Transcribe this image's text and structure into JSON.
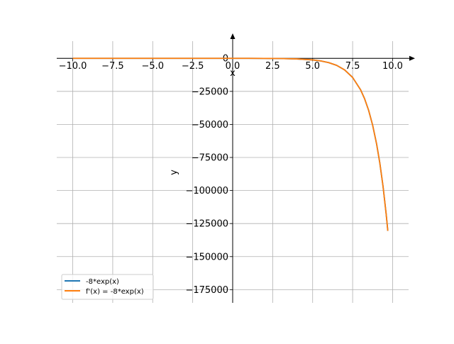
{
  "chart_data": {
    "type": "line",
    "xlabel": "x",
    "ylabel": "y",
    "xlim": [
      -11.0,
      11.0
    ],
    "ylim": [
      -185000,
      13000
    ],
    "grid": true,
    "legend_placement": "lower-left",
    "x_ticks": [
      -10.0,
      -7.5,
      -5.0,
      -2.5,
      0.0,
      2.5,
      5.0,
      7.5,
      10.0
    ],
    "x_tick_labels": [
      "−10.0",
      "−7.5",
      "−5.0",
      "−2.5",
      "0.0",
      "2.5",
      "5.0",
      "7.5",
      "10.0"
    ],
    "y_ticks": [
      0,
      -25000,
      -50000,
      -75000,
      -100000,
      -125000,
      -150000,
      -175000
    ],
    "y_tick_labels": [
      "0",
      "−25000",
      "−50000",
      "−75000",
      "−100000",
      "−125000",
      "−150000",
      "−175000"
    ],
    "x": [
      -10.0,
      -8.0,
      -6.0,
      -4.0,
      -2.0,
      0.0,
      1.0,
      2.0,
      3.0,
      4.0,
      5.0,
      5.5,
      6.0,
      6.5,
      7.0,
      7.5,
      8.0,
      8.25,
      8.5,
      8.75,
      9.0,
      9.2,
      9.4,
      9.6,
      9.7
    ],
    "series": [
      {
        "name": "-8*exp(x)",
        "color": "#1f77b4",
        "values": [
          -0.0004,
          -0.003,
          -0.02,
          -0.15,
          -1.08,
          -8,
          -21.7,
          -59.1,
          -160.7,
          -436.8,
          -1187.3,
          -1957.5,
          -3227.3,
          -5321.0,
          -8772.9,
          -14463.9,
          -23847.0,
          -30620.2,
          -39316.7,
          -50483.3,
          -64824.7,
          -79179.3,
          -96709.5,
          -118122.4,
          -130544.3
        ]
      },
      {
        "name": "f'(x) = -8*exp(x)",
        "color": "#ff7f0e",
        "values": [
          -0.0004,
          -0.003,
          -0.02,
          -0.15,
          -1.08,
          -8,
          -21.7,
          -59.1,
          -160.7,
          -436.8,
          -1187.3,
          -1957.5,
          -3227.3,
          -5321.0,
          -8772.9,
          -14463.9,
          -23847.0,
          -30620.2,
          -39316.7,
          -50483.3,
          -64824.7,
          -79179.3,
          -96709.5,
          -118122.4,
          -130544.3
        ]
      }
    ]
  }
}
